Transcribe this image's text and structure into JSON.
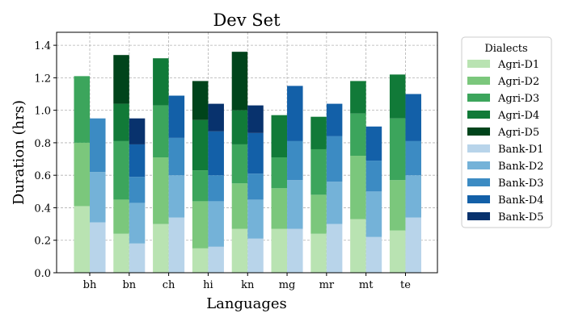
{
  "chart_data": {
    "type": "bar",
    "stacked": true,
    "grouped": true,
    "title": "Dev Set",
    "xlabel": "Languages",
    "ylabel": "Duration (hrs)",
    "ylim": [
      0,
      1.48
    ],
    "yticks": [
      "0.0",
      "0.2",
      "0.4",
      "0.6",
      "0.8",
      "1.0",
      "1.2",
      "1.4"
    ],
    "grid": true,
    "legend_title": "Dialects",
    "legend_position": "outside-right",
    "categories": [
      "bh",
      "bn",
      "ch",
      "hi",
      "kn",
      "mg",
      "mr",
      "mt",
      "te"
    ],
    "groups": [
      {
        "name": "Agri",
        "series": [
          {
            "name": "Agri-D1",
            "color": "#b9e3b2",
            "values": [
              0.41,
              0.24,
              0.3,
              0.15,
              0.27,
              0.27,
              0.24,
              0.33,
              0.26
            ]
          },
          {
            "name": "Agri-D2",
            "color": "#7bc77c",
            "values": [
              0.39,
              0.21,
              0.41,
              0.29,
              0.28,
              0.25,
              0.24,
              0.39,
              0.31
            ]
          },
          {
            "name": "Agri-D3",
            "color": "#3ca55c",
            "values": [
              0.41,
              0.36,
              0.32,
              0.19,
              0.24,
              0.19,
              0.28,
              0.26,
              0.38
            ]
          },
          {
            "name": "Agri-D4",
            "color": "#117a38",
            "values": [
              0.0,
              0.23,
              0.29,
              0.31,
              0.21,
              0.26,
              0.2,
              0.2,
              0.27
            ]
          },
          {
            "name": "Agri-D5",
            "color": "#00441b",
            "values": [
              0.0,
              0.3,
              0.0,
              0.24,
              0.36,
              0.0,
              0.0,
              0.0,
              0.0
            ]
          }
        ]
      },
      {
        "name": "Bank",
        "series": [
          {
            "name": "Bank-D1",
            "color": "#b8d4ea",
            "values": [
              0.31,
              0.18,
              0.34,
              0.16,
              0.21,
              0.27,
              0.3,
              0.22,
              0.34
            ]
          },
          {
            "name": "Bank-D2",
            "color": "#74b2d8",
            "values": [
              0.31,
              0.25,
              0.26,
              0.28,
              0.24,
              0.3,
              0.26,
              0.28,
              0.26
            ]
          },
          {
            "name": "Bank-D3",
            "color": "#3c8bc3",
            "values": [
              0.33,
              0.16,
              0.23,
              0.16,
              0.16,
              0.24,
              0.28,
              0.19,
              0.21
            ]
          },
          {
            "name": "Bank-D4",
            "color": "#1360a8",
            "values": [
              0.0,
              0.2,
              0.26,
              0.27,
              0.25,
              0.34,
              0.2,
              0.21,
              0.29
            ]
          },
          {
            "name": "Bank-D5",
            "color": "#08326d",
            "values": [
              0.0,
              0.16,
              0.0,
              0.17,
              0.17,
              0.0,
              0.0,
              0.0,
              0.0
            ]
          }
        ]
      }
    ]
  }
}
